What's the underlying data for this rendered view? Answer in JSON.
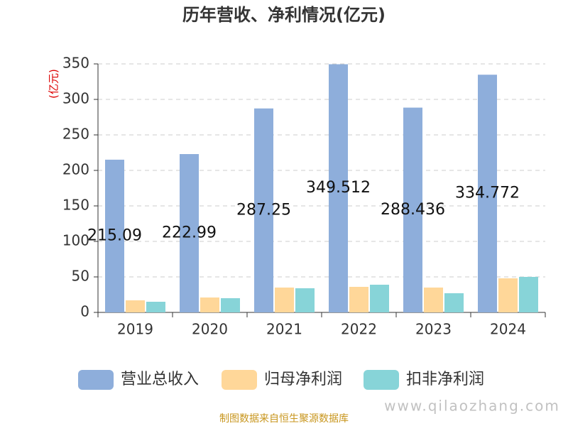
{
  "chart_data": {
    "type": "bar",
    "title": "历年营收、净利情况(亿元)",
    "y_label": "(亿元)",
    "categories": [
      "2019",
      "2020",
      "2021",
      "2022",
      "2023",
      "2024"
    ],
    "series": [
      {
        "name": "营业总收入",
        "color": "#8eaedb",
        "values": [
          215.09,
          222.99,
          287.25,
          349.512,
          288.436,
          334.772
        ]
      },
      {
        "name": "归母净利润",
        "color": "#ffd799",
        "values": [
          17,
          21,
          35,
          36,
          35,
          48
        ]
      },
      {
        "name": "扣非净利润",
        "color": "#87d4d8",
        "values": [
          15,
          20,
          34,
          39,
          27,
          50
        ]
      }
    ],
    "ylim": [
      0,
      350
    ],
    "yticks": [
      0,
      50,
      100,
      150,
      200,
      250,
      300,
      350
    ],
    "grid": true,
    "source": "制图数据来自恒生聚源数据库",
    "watermark": "www.qilaozhang.com"
  }
}
